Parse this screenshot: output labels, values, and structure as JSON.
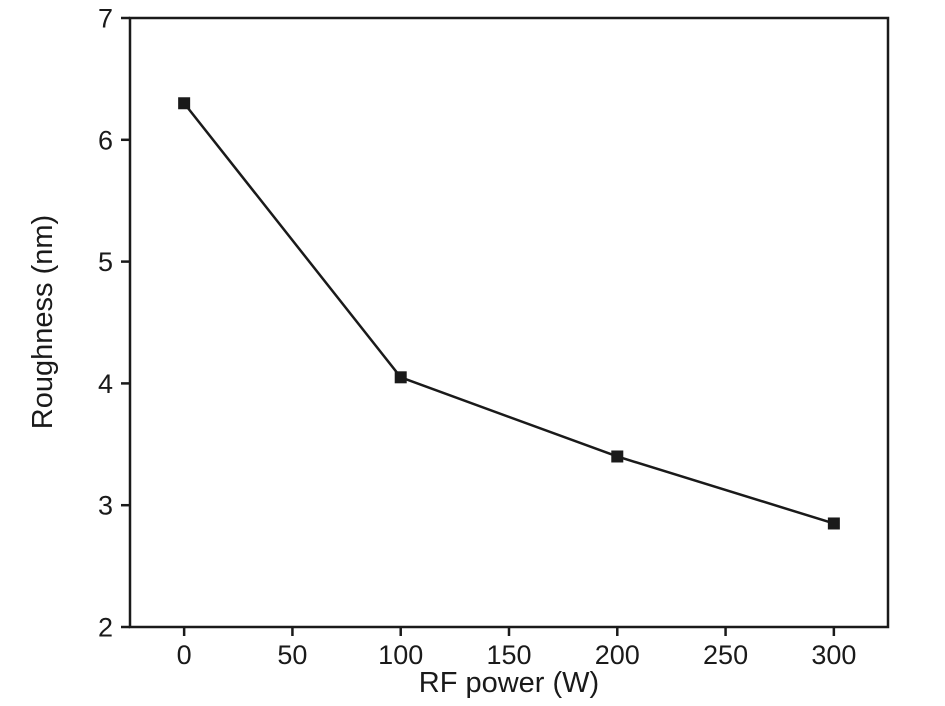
{
  "chart_data": {
    "type": "line",
    "title": "",
    "xlabel": "RF power (W)",
    "ylabel": "Roughness (nm)",
    "x": [
      0,
      100,
      200,
      300
    ],
    "series": [
      {
        "name": "Roughness",
        "values": [
          6.3,
          4.05,
          3.4,
          2.85
        ]
      }
    ],
    "xlim": [
      -25,
      325
    ],
    "ylim": [
      2,
      7
    ],
    "x_ticks": [
      0,
      50,
      100,
      150,
      200,
      250,
      300
    ],
    "y_ticks": [
      2,
      3,
      4,
      5,
      6,
      7
    ],
    "grid": false,
    "legend": "none",
    "marker": "square",
    "marker_size": 12,
    "line_width": 2.5,
    "axis_color": "#1a1a1a",
    "line_color": "#1a1a1a",
    "marker_color": "#1a1a1a",
    "background_color": "#ffffff"
  }
}
